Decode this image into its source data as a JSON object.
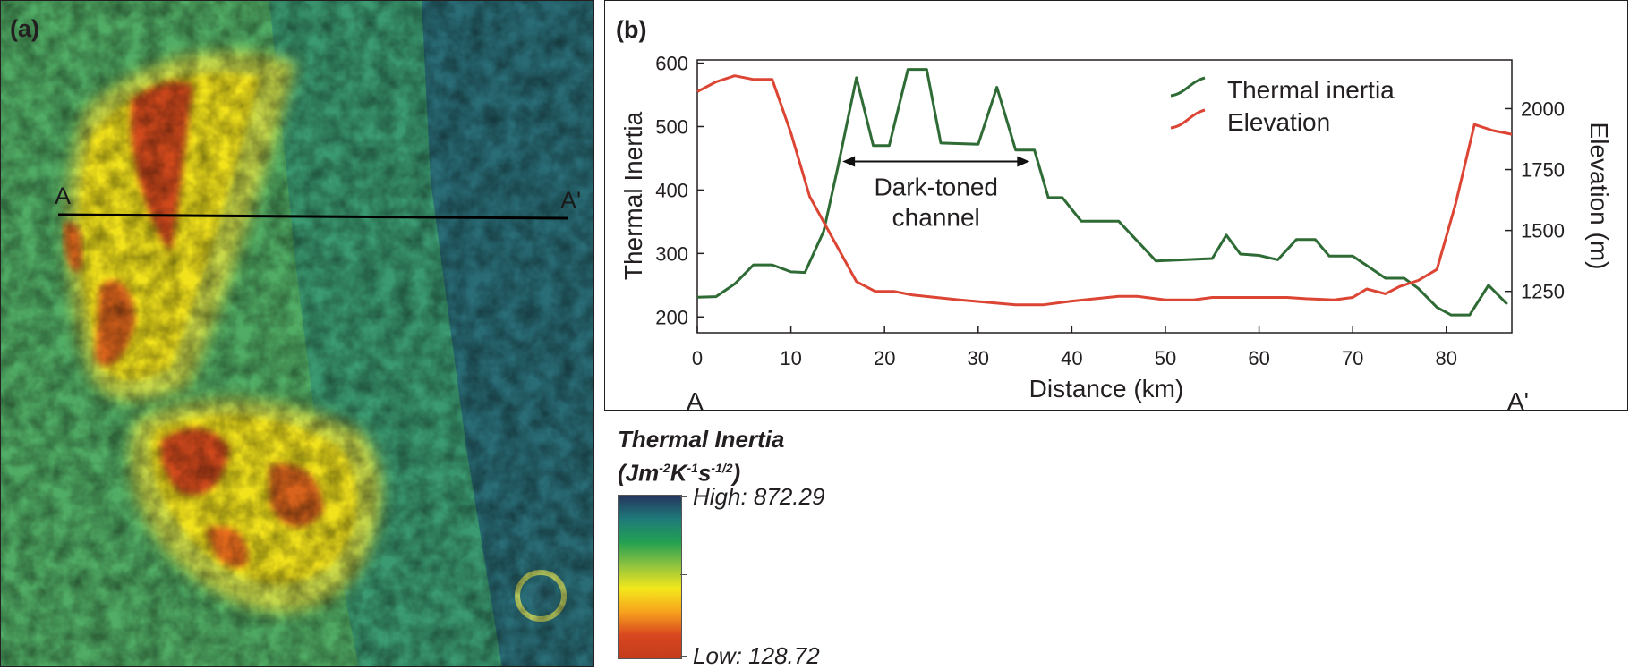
{
  "panel_a": {
    "tag": "(a)",
    "start_label": "A",
    "end_label": "A'"
  },
  "legend": {
    "title_line1": "Thermal Inertia",
    "unit_parts": [
      "(Jm",
      "-2",
      "K",
      "-1",
      "s",
      "-1/2",
      ")"
    ],
    "high_label": "High: 872.29",
    "low_label": "Low: 128.72",
    "colors": [
      "#26355e",
      "#1e7a7a",
      "#23a052",
      "#8fc23f",
      "#f4e81c",
      "#f7a21d",
      "#d8471f",
      "#c43c1c"
    ]
  },
  "chart_data": {
    "type": "line",
    "tag": "(b)",
    "xlabel": "Distance (km)",
    "ylabel_left": "Thermal Inertia",
    "ylabel_right": "Elevation (m)",
    "xlim": [
      0,
      87
    ],
    "ylim_left": [
      175,
      605
    ],
    "ylim_right": [
      1080,
      2200
    ],
    "x_ticks": [
      "0",
      "10",
      "20",
      "30",
      "40",
      "50",
      "60",
      "70",
      "80"
    ],
    "y_ticks_left": [
      "200",
      "300",
      "400",
      "500",
      "600"
    ],
    "y_ticks_right": [
      "1250",
      "1500",
      "1750",
      "2000"
    ],
    "profile_start_label": "A",
    "profile_end_label": "A'",
    "legend_position": "top-right",
    "annotation": {
      "text_line1": "Dark-toned",
      "text_line2": "channel",
      "x_start": 15.5,
      "x_end": 35.5,
      "y": 445
    },
    "series": [
      {
        "name": "Thermal inertia",
        "axis": "left",
        "color": "#2e6b35",
        "x": [
          0,
          2,
          4,
          6,
          8,
          10,
          11.5,
          13.5,
          15,
          17,
          18.8,
          20.5,
          22.5,
          24.5,
          26,
          30,
          32,
          34,
          36,
          37.5,
          39,
          41,
          45,
          49,
          55,
          56.5,
          58,
          60,
          62,
          64,
          66,
          67.5,
          70,
          73.5,
          75.5,
          77,
          79,
          80.5,
          82.5,
          84.5,
          86.5
        ],
        "values": [
          231,
          232,
          252,
          282,
          282,
          271,
          270,
          335,
          435,
          577,
          470,
          470,
          590,
          590,
          474,
          472,
          562,
          463,
          463,
          388,
          388,
          351,
          351,
          288,
          292,
          329,
          299,
          297,
          290,
          322,
          322,
          296,
          296,
          261,
          261,
          245,
          215,
          203,
          203,
          250,
          220
        ]
      },
      {
        "name": "Elevation",
        "axis": "right",
        "color": "#dc4433",
        "x": [
          0,
          2,
          4,
          6,
          8,
          10,
          12,
          14,
          17,
          19,
          21,
          23,
          28,
          34,
          37,
          40,
          45,
          47,
          50,
          53,
          55,
          57,
          63,
          65,
          68,
          70,
          71.5,
          73.5,
          75,
          77,
          79,
          81,
          83,
          85,
          87
        ],
        "values": [
          2070,
          2110,
          2135,
          2120,
          2120,
          1900,
          1640,
          1500,
          1290,
          1250,
          1250,
          1235,
          1215,
          1195,
          1195,
          1210,
          1230,
          1230,
          1215,
          1215,
          1225,
          1225,
          1225,
          1220,
          1215,
          1225,
          1260,
          1240,
          1270,
          1295,
          1340,
          1610,
          1935,
          1910,
          1895
        ]
      }
    ]
  }
}
